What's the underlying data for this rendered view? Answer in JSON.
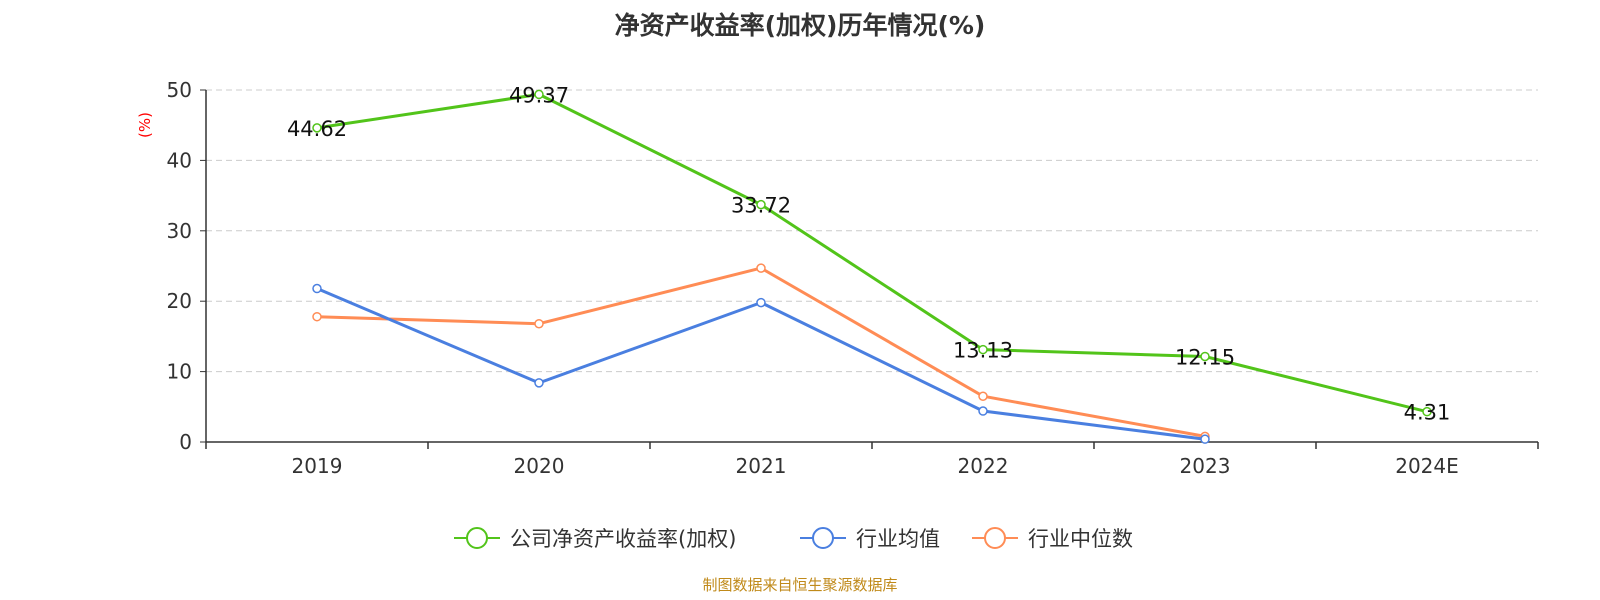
{
  "chart_data": {
    "type": "line",
    "title": "净资产收益率(加权)历年情况(%)",
    "ylabel": "(%)",
    "xlabel": "",
    "categories": [
      "2019",
      "2020",
      "2021",
      "2022",
      "2023",
      "2024E"
    ],
    "ylim": [
      0,
      50
    ],
    "yticks": [
      0,
      10,
      20,
      30,
      40,
      50
    ],
    "grid": true,
    "legend_position": "bottom-center",
    "series": [
      {
        "name": "公司净资产收益率(加权)",
        "color": "#52c41a",
        "values": [
          44.62,
          49.37,
          33.72,
          13.13,
          12.15,
          4.31
        ],
        "labels": [
          "44.62",
          "49.37",
          "33.72",
          "13.13",
          "12.15",
          "4.31"
        ]
      },
      {
        "name": "行业均值",
        "color": "#4a7fe0",
        "values": [
          21.8,
          8.4,
          19.8,
          4.4,
          0.4,
          null
        ]
      },
      {
        "name": "行业中位数",
        "color": "#ff8c55",
        "values": [
          17.8,
          16.8,
          24.7,
          6.5,
          0.8,
          null
        ]
      }
    ]
  },
  "footer": {
    "source": "制图数据来自恒生聚源数据库"
  }
}
